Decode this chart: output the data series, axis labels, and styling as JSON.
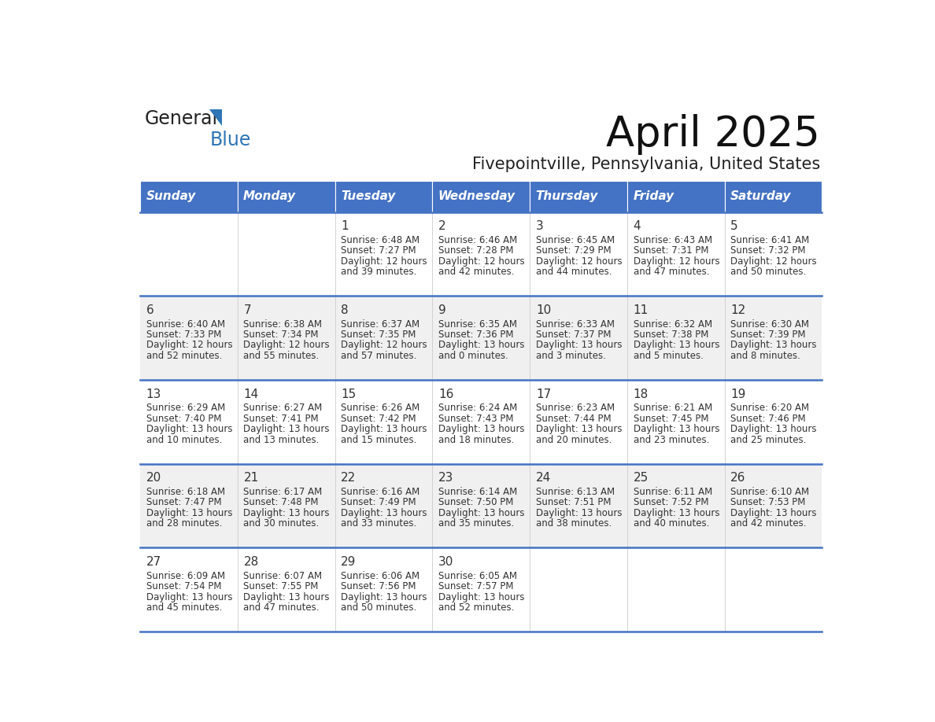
{
  "title": "April 2025",
  "subtitle": "Fivepointville, Pennsylvania, United States",
  "days_of_week": [
    "Sunday",
    "Monday",
    "Tuesday",
    "Wednesday",
    "Thursday",
    "Friday",
    "Saturday"
  ],
  "header_bg_color": "#4472C4",
  "header_text_color": "#FFFFFF",
  "cell_bg_even": "#FFFFFF",
  "cell_bg_odd": "#F0F0F0",
  "row_line_color": "#4472C4",
  "text_color": "#333333",
  "logo_general_color": "#222222",
  "logo_blue_color": "#2E75B6",
  "calendar_data": [
    {
      "day": 1,
      "col": 2,
      "row": 0,
      "sunrise": "6:48 AM",
      "sunset": "7:27 PM",
      "daylight_hours": 12,
      "daylight_minutes": 39
    },
    {
      "day": 2,
      "col": 3,
      "row": 0,
      "sunrise": "6:46 AM",
      "sunset": "7:28 PM",
      "daylight_hours": 12,
      "daylight_minutes": 42
    },
    {
      "day": 3,
      "col": 4,
      "row": 0,
      "sunrise": "6:45 AM",
      "sunset": "7:29 PM",
      "daylight_hours": 12,
      "daylight_minutes": 44
    },
    {
      "day": 4,
      "col": 5,
      "row": 0,
      "sunrise": "6:43 AM",
      "sunset": "7:31 PM",
      "daylight_hours": 12,
      "daylight_minutes": 47
    },
    {
      "day": 5,
      "col": 6,
      "row": 0,
      "sunrise": "6:41 AM",
      "sunset": "7:32 PM",
      "daylight_hours": 12,
      "daylight_minutes": 50
    },
    {
      "day": 6,
      "col": 0,
      "row": 1,
      "sunrise": "6:40 AM",
      "sunset": "7:33 PM",
      "daylight_hours": 12,
      "daylight_minutes": 52
    },
    {
      "day": 7,
      "col": 1,
      "row": 1,
      "sunrise": "6:38 AM",
      "sunset": "7:34 PM",
      "daylight_hours": 12,
      "daylight_minutes": 55
    },
    {
      "day": 8,
      "col": 2,
      "row": 1,
      "sunrise": "6:37 AM",
      "sunset": "7:35 PM",
      "daylight_hours": 12,
      "daylight_minutes": 57
    },
    {
      "day": 9,
      "col": 3,
      "row": 1,
      "sunrise": "6:35 AM",
      "sunset": "7:36 PM",
      "daylight_hours": 13,
      "daylight_minutes": 0
    },
    {
      "day": 10,
      "col": 4,
      "row": 1,
      "sunrise": "6:33 AM",
      "sunset": "7:37 PM",
      "daylight_hours": 13,
      "daylight_minutes": 3
    },
    {
      "day": 11,
      "col": 5,
      "row": 1,
      "sunrise": "6:32 AM",
      "sunset": "7:38 PM",
      "daylight_hours": 13,
      "daylight_minutes": 5
    },
    {
      "day": 12,
      "col": 6,
      "row": 1,
      "sunrise": "6:30 AM",
      "sunset": "7:39 PM",
      "daylight_hours": 13,
      "daylight_minutes": 8
    },
    {
      "day": 13,
      "col": 0,
      "row": 2,
      "sunrise": "6:29 AM",
      "sunset": "7:40 PM",
      "daylight_hours": 13,
      "daylight_minutes": 10
    },
    {
      "day": 14,
      "col": 1,
      "row": 2,
      "sunrise": "6:27 AM",
      "sunset": "7:41 PM",
      "daylight_hours": 13,
      "daylight_minutes": 13
    },
    {
      "day": 15,
      "col": 2,
      "row": 2,
      "sunrise": "6:26 AM",
      "sunset": "7:42 PM",
      "daylight_hours": 13,
      "daylight_minutes": 15
    },
    {
      "day": 16,
      "col": 3,
      "row": 2,
      "sunrise": "6:24 AM",
      "sunset": "7:43 PM",
      "daylight_hours": 13,
      "daylight_minutes": 18
    },
    {
      "day": 17,
      "col": 4,
      "row": 2,
      "sunrise": "6:23 AM",
      "sunset": "7:44 PM",
      "daylight_hours": 13,
      "daylight_minutes": 20
    },
    {
      "day": 18,
      "col": 5,
      "row": 2,
      "sunrise": "6:21 AM",
      "sunset": "7:45 PM",
      "daylight_hours": 13,
      "daylight_minutes": 23
    },
    {
      "day": 19,
      "col": 6,
      "row": 2,
      "sunrise": "6:20 AM",
      "sunset": "7:46 PM",
      "daylight_hours": 13,
      "daylight_minutes": 25
    },
    {
      "day": 20,
      "col": 0,
      "row": 3,
      "sunrise": "6:18 AM",
      "sunset": "7:47 PM",
      "daylight_hours": 13,
      "daylight_minutes": 28
    },
    {
      "day": 21,
      "col": 1,
      "row": 3,
      "sunrise": "6:17 AM",
      "sunset": "7:48 PM",
      "daylight_hours": 13,
      "daylight_minutes": 30
    },
    {
      "day": 22,
      "col": 2,
      "row": 3,
      "sunrise": "6:16 AM",
      "sunset": "7:49 PM",
      "daylight_hours": 13,
      "daylight_minutes": 33
    },
    {
      "day": 23,
      "col": 3,
      "row": 3,
      "sunrise": "6:14 AM",
      "sunset": "7:50 PM",
      "daylight_hours": 13,
      "daylight_minutes": 35
    },
    {
      "day": 24,
      "col": 4,
      "row": 3,
      "sunrise": "6:13 AM",
      "sunset": "7:51 PM",
      "daylight_hours": 13,
      "daylight_minutes": 38
    },
    {
      "day": 25,
      "col": 5,
      "row": 3,
      "sunrise": "6:11 AM",
      "sunset": "7:52 PM",
      "daylight_hours": 13,
      "daylight_minutes": 40
    },
    {
      "day": 26,
      "col": 6,
      "row": 3,
      "sunrise": "6:10 AM",
      "sunset": "7:53 PM",
      "daylight_hours": 13,
      "daylight_minutes": 42
    },
    {
      "day": 27,
      "col": 0,
      "row": 4,
      "sunrise": "6:09 AM",
      "sunset": "7:54 PM",
      "daylight_hours": 13,
      "daylight_minutes": 45
    },
    {
      "day": 28,
      "col": 1,
      "row": 4,
      "sunrise": "6:07 AM",
      "sunset": "7:55 PM",
      "daylight_hours": 13,
      "daylight_minutes": 47
    },
    {
      "day": 29,
      "col": 2,
      "row": 4,
      "sunrise": "6:06 AM",
      "sunset": "7:56 PM",
      "daylight_hours": 13,
      "daylight_minutes": 50
    },
    {
      "day": 30,
      "col": 3,
      "row": 4,
      "sunrise": "6:05 AM",
      "sunset": "7:57 PM",
      "daylight_hours": 13,
      "daylight_minutes": 52
    }
  ]
}
